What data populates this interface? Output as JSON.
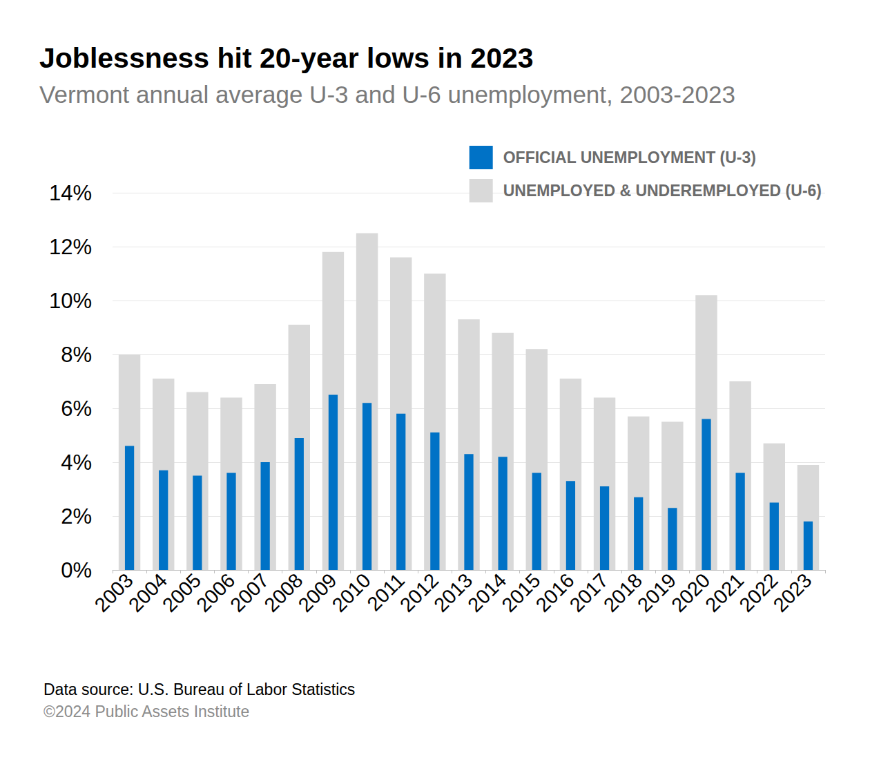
{
  "chart_data": {
    "type": "bar",
    "title": "Joblessness hit 20-year lows in 2023",
    "subtitle": "Vermont annual average U-3 and U-6 unemployment, 2003-2023",
    "source": "Data source: U.S. Bureau of Labor Statistics",
    "credit": "©2024 Public Assets Institute",
    "categories": [
      "2003",
      "2004",
      "2005",
      "2006",
      "2007",
      "2008",
      "2009",
      "2010",
      "2011",
      "2012",
      "2013",
      "2014",
      "2015",
      "2016",
      "2017",
      "2018",
      "2019",
      "2020",
      "2021",
      "2022",
      "2023"
    ],
    "series": [
      {
        "name": "OFFICIAL UNEMPLOYMENT (U-3)",
        "color": "#0072c6",
        "values": [
          4.6,
          3.7,
          3.5,
          3.6,
          4.0,
          4.9,
          6.5,
          6.2,
          5.8,
          5.1,
          4.3,
          4.2,
          3.6,
          3.3,
          3.1,
          2.7,
          2.3,
          5.6,
          3.6,
          2.5,
          1.8
        ]
      },
      {
        "name": "UNEMPLOYED & UNDEREMPLOYED (U-6)",
        "color": "#d9d9d9",
        "values": [
          8.0,
          7.1,
          6.6,
          6.4,
          6.9,
          9.1,
          11.8,
          12.5,
          11.6,
          11.0,
          9.3,
          8.8,
          8.2,
          7.1,
          6.4,
          5.7,
          5.5,
          10.2,
          7.0,
          4.7,
          3.9
        ]
      }
    ],
    "ylim": [
      0,
      14
    ],
    "yticks": [
      {
        "value": 0,
        "label": "0%"
      },
      {
        "value": 2,
        "label": "2%"
      },
      {
        "value": 4,
        "label": "4%"
      },
      {
        "value": 6,
        "label": "6%"
      },
      {
        "value": 8,
        "label": "8%"
      },
      {
        "value": 10,
        "label": "10%"
      },
      {
        "value": 12,
        "label": "12%"
      },
      {
        "value": 14,
        "label": "14%"
      }
    ],
    "grid": true,
    "legend": "top-right"
  }
}
